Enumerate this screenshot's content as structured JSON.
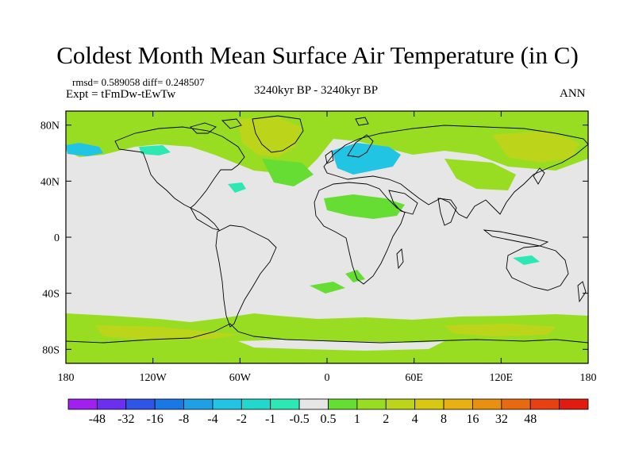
{
  "title": "Coldest Month Mean Surface Air Temperature (in C)",
  "stats": "rmsd= 0.589058  diff= 0.248507",
  "experiment": "Expt = tFmDw-tEwTw",
  "period": "3240kyr BP - 3240kyr BP",
  "season": "ANN",
  "map": {
    "projection": "cylindrical equidistant",
    "lon_range": [
      -180,
      180
    ],
    "lat_range": [
      -90,
      90
    ],
    "background_color": "#e6e6e6",
    "x_ticks": [
      "180",
      "120W",
      "60W",
      "0",
      "60E",
      "120E",
      "180"
    ],
    "y_ticks": [
      "80N",
      "40N",
      "0",
      "40S",
      "80S"
    ]
  },
  "colorbar": {
    "colors": [
      "#a020f0",
      "#6a2ff0",
      "#2f55e8",
      "#1a78e6",
      "#1ea0e6",
      "#22c4e4",
      "#22d8cc",
      "#2ee8b4",
      "#e6e6e6",
      "#66dd33",
      "#99dd22",
      "#bcd51a",
      "#d8c812",
      "#e8b012",
      "#e89010",
      "#e86a10",
      "#e84010",
      "#e01c10"
    ],
    "labels": [
      "-48",
      "-32",
      "-16",
      "-8",
      "-4",
      "-2",
      "-1",
      "-0.5",
      "0.5",
      "1",
      "2",
      "4",
      "8",
      "16",
      "32",
      "48"
    ]
  }
}
